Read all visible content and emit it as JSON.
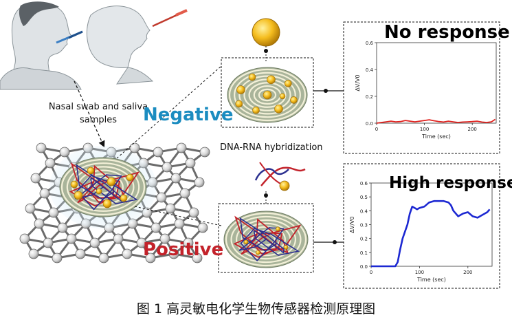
{
  "labels": {
    "sample": "Nasal swab and saliva samples",
    "negative": "Negative",
    "positive": "Positive",
    "hybridization": "DNA-RNA hybridization",
    "caption": "图 1 高灵敏电化学生物传感器检测原理图"
  },
  "colors": {
    "negative": "#1b8cc0",
    "positive": "#c3222a",
    "no_response_line": "#e0201c",
    "high_response_line": "#1c28d2"
  },
  "chart_data": [
    {
      "type": "line",
      "title": "No response",
      "xlabel": "Time (sec)",
      "ylabel": "ΔV/V0",
      "xlim": [
        0,
        250
      ],
      "ylim": [
        0,
        0.6
      ],
      "xticks": [
        0,
        100,
        200
      ],
      "yticks": [
        0.0,
        0.2,
        0.4,
        0.6
      ],
      "series": [
        {
          "color": "#e0201c",
          "x": [
            0,
            10,
            20,
            30,
            40,
            50,
            60,
            70,
            80,
            90,
            100,
            110,
            120,
            130,
            140,
            150,
            160,
            170,
            180,
            190,
            200,
            210,
            220,
            230,
            240,
            248
          ],
          "y": [
            0.0,
            0.005,
            0.01,
            0.015,
            0.01,
            0.012,
            0.02,
            0.015,
            0.01,
            0.015,
            0.02,
            0.025,
            0.018,
            0.012,
            0.008,
            0.015,
            0.01,
            0.005,
            0.008,
            0.01,
            0.012,
            0.015,
            0.008,
            0.005,
            0.01,
            0.028
          ]
        }
      ]
    },
    {
      "type": "line",
      "title": "High response",
      "xlabel": "Time (sec)",
      "ylabel": "ΔV/V0",
      "xlim": [
        0,
        250
      ],
      "ylim": [
        0,
        0.6
      ],
      "xticks": [
        0,
        100,
        200
      ],
      "yticks": [
        0.0,
        0.1,
        0.2,
        0.3,
        0.4,
        0.5,
        0.6
      ],
      "series": [
        {
          "color": "#1c28d2",
          "x": [
            0,
            20,
            40,
            50,
            55,
            60,
            65,
            70,
            75,
            80,
            85,
            90,
            95,
            100,
            110,
            120,
            130,
            140,
            150,
            160,
            165,
            170,
            180,
            190,
            200,
            210,
            220,
            230,
            240,
            245
          ],
          "y": [
            0.0,
            0.0,
            0.0,
            0.0,
            0.03,
            0.12,
            0.2,
            0.25,
            0.3,
            0.38,
            0.43,
            0.42,
            0.41,
            0.42,
            0.43,
            0.46,
            0.47,
            0.47,
            0.47,
            0.46,
            0.44,
            0.4,
            0.36,
            0.38,
            0.39,
            0.36,
            0.35,
            0.37,
            0.39,
            0.41
          ]
        }
      ]
    }
  ]
}
